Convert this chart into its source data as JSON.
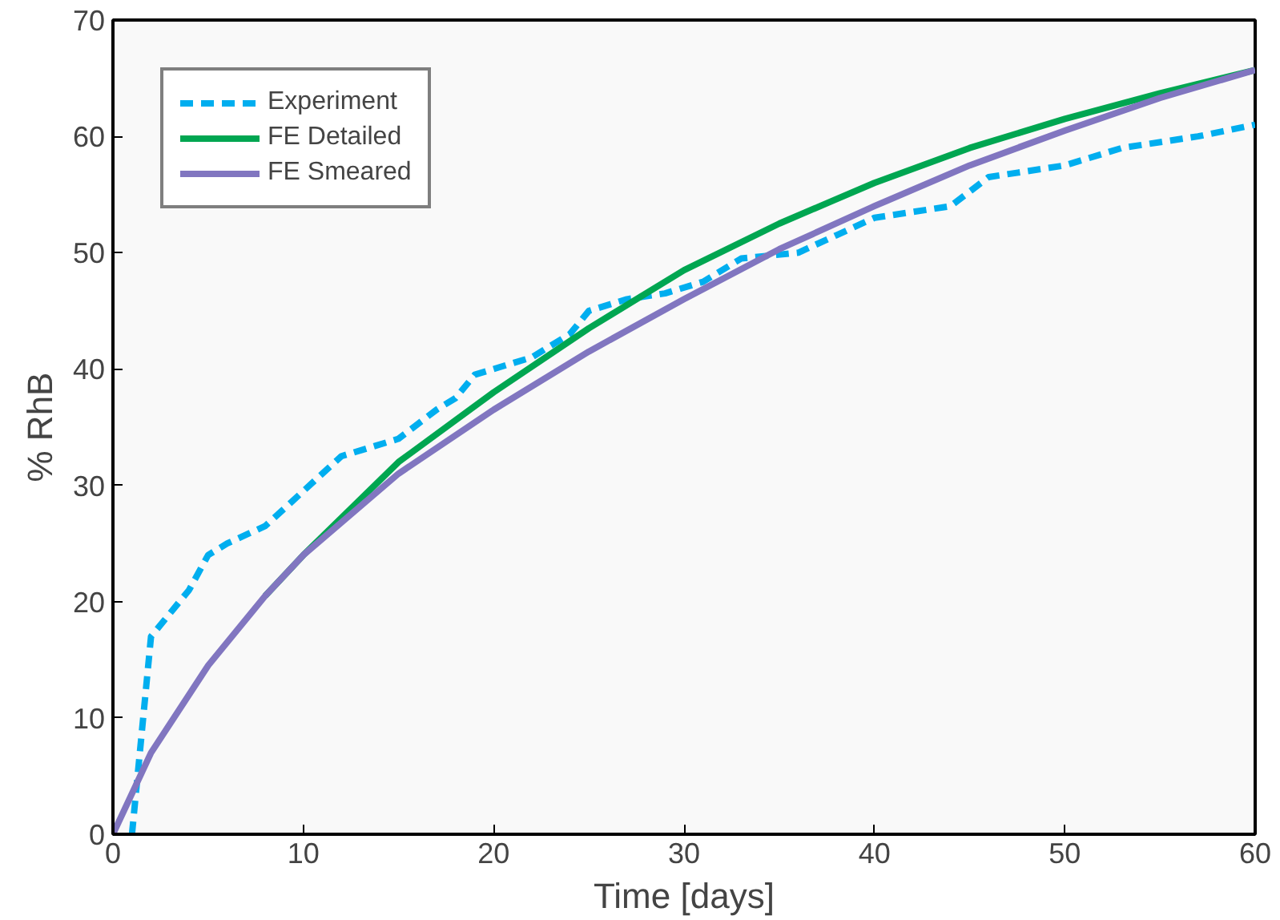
{
  "chart_data": {
    "type": "line",
    "xlabel": "Time [days]",
    "ylabel": "% RhB",
    "xlim": [
      0,
      60
    ],
    "ylim": [
      0,
      70
    ],
    "xticks": [
      0,
      10,
      20,
      30,
      40,
      50,
      60
    ],
    "yticks": [
      0,
      10,
      20,
      30,
      40,
      50,
      60,
      70
    ],
    "grid": false,
    "legend": "top left",
    "series": [
      {
        "name": "Experiment",
        "color": "#00aeef",
        "line_style": "dashed",
        "x": [
          1,
          2,
          3,
          4,
          5,
          6,
          8,
          10,
          12,
          15,
          17,
          18,
          19,
          22,
          24,
          25,
          27,
          29,
          31,
          33,
          36,
          38,
          40,
          44,
          46,
          50,
          53,
          57,
          60
        ],
        "values": [
          0,
          17,
          19,
          21,
          24,
          25,
          26.5,
          29.5,
          32.5,
          34,
          36.5,
          37.5,
          39.5,
          41,
          43,
          45,
          46,
          46.5,
          47.5,
          49.5,
          50,
          51.5,
          53,
          54,
          56.5,
          57.5,
          59,
          60,
          61
        ]
      },
      {
        "name": "FE Detailed",
        "color": "#00a651",
        "line_style": "solid",
        "x": [
          8,
          10,
          15,
          20,
          25,
          30,
          35,
          40,
          45,
          50,
          55,
          60
        ],
        "values": [
          20.5,
          24,
          32,
          38,
          43.5,
          48.5,
          52.5,
          56,
          59,
          61.5,
          63.7,
          65.7
        ]
      },
      {
        "name": "FE Smeared",
        "color": "#8176c0",
        "line_style": "solid",
        "x": [
          0,
          2,
          5,
          8,
          10,
          15,
          20,
          25,
          30,
          35,
          40,
          45,
          50,
          55,
          60
        ],
        "values": [
          0,
          7,
          14.5,
          20.5,
          24,
          31,
          36.5,
          41.5,
          46,
          50.3,
          54,
          57.5,
          60.5,
          63.3,
          65.7
        ]
      }
    ]
  }
}
